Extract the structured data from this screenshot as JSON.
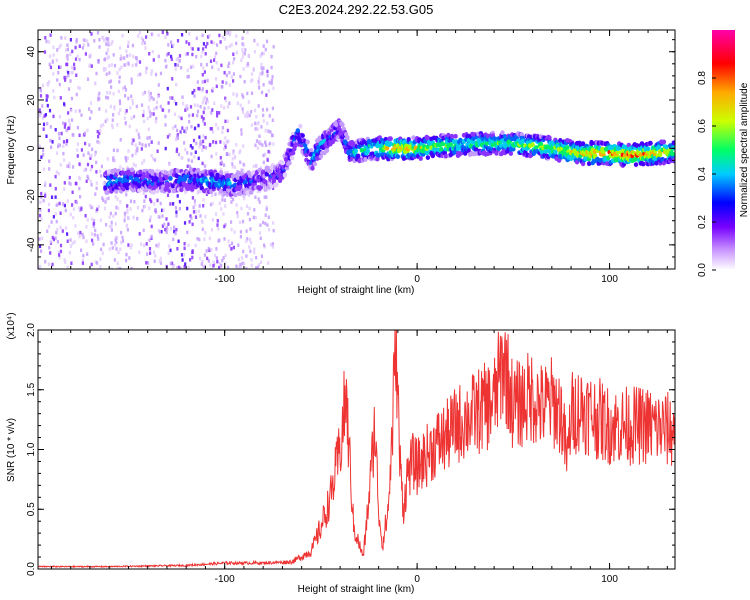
{
  "figure": {
    "title": "C2E3.2024.292.22.53.G05"
  },
  "chart_data": [
    {
      "type": "heatmap",
      "title": "C2E3.2024.292.22.53.G05",
      "xlabel": "Height of straight line (km)",
      "ylabel": "Frequency (Hz)",
      "xlim": [
        -197,
        134
      ],
      "ylim": [
        -50,
        49
      ],
      "x_ticks": [
        -100,
        0,
        100
      ],
      "y_ticks": [
        -40,
        -20,
        0,
        20,
        40
      ],
      "colorbar": {
        "label": "Normalized spectral amplitude",
        "range": [
          0,
          1
        ],
        "ticks": [
          0.0,
          0.2,
          0.4,
          0.6,
          0.8
        ],
        "colors": [
          "#ffffff",
          "#cc99ff",
          "#7700ff",
          "#0000ff",
          "#00ccff",
          "#00ff66",
          "#ccff00",
          "#ffaa00",
          "#ff0000",
          "#ff00aa"
        ]
      },
      "noise_region": {
        "x": [
          -197,
          -75
        ],
        "y": [
          -50,
          49
        ]
      },
      "ridge": [
        {
          "x": -162,
          "y": -14,
          "a": 0.45
        },
        {
          "x": -150,
          "y": -13,
          "a": 0.4
        },
        {
          "x": -135,
          "y": -14,
          "a": 0.3
        },
        {
          "x": -120,
          "y": -13,
          "a": 0.35
        },
        {
          "x": -105,
          "y": -14,
          "a": 0.45
        },
        {
          "x": -95,
          "y": -15,
          "a": 0.35
        },
        {
          "x": -80,
          "y": -13,
          "a": 0.25
        },
        {
          "x": -70,
          "y": -10,
          "a": 0.3
        },
        {
          "x": -62,
          "y": 7,
          "a": 0.35
        },
        {
          "x": -55,
          "y": -5,
          "a": 0.4
        },
        {
          "x": -50,
          "y": 1,
          "a": 0.45
        },
        {
          "x": -45,
          "y": 5,
          "a": 0.35
        },
        {
          "x": -40,
          "y": 8,
          "a": 0.25
        },
        {
          "x": -35,
          "y": -2,
          "a": 0.45
        },
        {
          "x": -25,
          "y": 0,
          "a": 0.55
        },
        {
          "x": -10,
          "y": 0,
          "a": 0.8
        },
        {
          "x": 0,
          "y": 0,
          "a": 0.7
        },
        {
          "x": 15,
          "y": 1,
          "a": 0.6
        },
        {
          "x": 30,
          "y": 2,
          "a": 0.55
        },
        {
          "x": 50,
          "y": 2,
          "a": 0.6
        },
        {
          "x": 70,
          "y": 0,
          "a": 0.7
        },
        {
          "x": 85,
          "y": -2,
          "a": 0.75
        },
        {
          "x": 100,
          "y": -2,
          "a": 0.8
        },
        {
          "x": 110,
          "y": -3,
          "a": 0.85
        },
        {
          "x": 125,
          "y": -2,
          "a": 0.8
        },
        {
          "x": 134,
          "y": -1,
          "a": 0.6
        }
      ]
    },
    {
      "type": "line",
      "xlabel": "Height of straight line (km)",
      "ylabel": "SNR (10 * v/v)",
      "y_multiplier_label": "(x10⁴)",
      "xlim": [
        -197,
        134
      ],
      "ylim": [
        0,
        2.0
      ],
      "x_ticks": [
        -100,
        0,
        100
      ],
      "y_ticks": [
        0.0,
        0.5,
        1.0,
        1.5,
        2.0
      ],
      "series": [
        {
          "color": "#ee3333",
          "x": [
            -197,
            -160,
            -120,
            -100,
            -80,
            -65,
            -55,
            -50,
            -45,
            -40,
            -37,
            -35,
            -33,
            -30,
            -28,
            -25,
            -22,
            -20,
            -18,
            -15,
            -13,
            -11,
            -9,
            -7,
            -5,
            -2,
            0,
            5,
            10,
            15,
            20,
            25,
            30,
            35,
            40,
            45,
            50,
            55,
            60,
            65,
            70,
            75,
            78,
            80,
            85,
            90,
            95,
            100,
            110,
            120,
            134
          ],
          "y": [
            0.02,
            0.02,
            0.03,
            0.05,
            0.05,
            0.06,
            0.15,
            0.35,
            0.6,
            1.0,
            1.45,
            0.9,
            0.35,
            0.2,
            0.1,
            0.6,
            1.2,
            0.5,
            0.2,
            0.5,
            1.1,
            2.0,
            0.9,
            0.5,
            0.8,
            0.9,
            0.85,
            0.95,
            1.05,
            1.1,
            1.2,
            1.25,
            1.3,
            1.35,
            1.4,
            1.75,
            1.35,
            1.4,
            1.45,
            1.35,
            1.4,
            1.3,
            0.9,
            1.3,
            1.35,
            1.3,
            1.25,
            1.2,
            1.2,
            1.2,
            1.15
          ]
        }
      ]
    }
  ]
}
